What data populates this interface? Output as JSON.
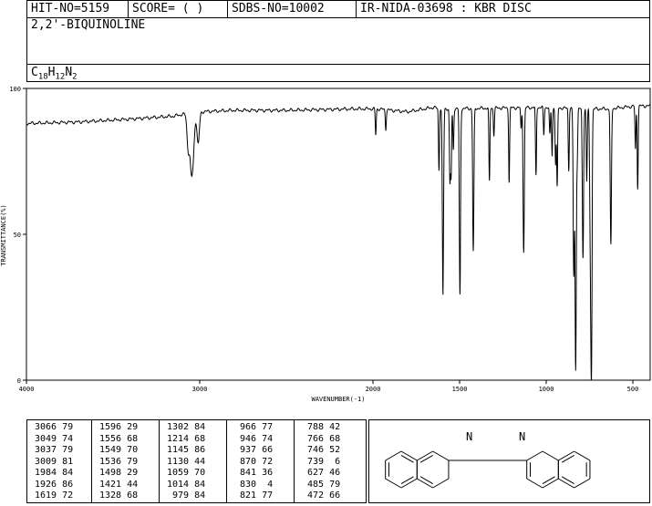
{
  "header": {
    "hit_no": "HIT-NO=5159",
    "score": "SCORE=  (   )",
    "sdbs_no": "SDBS-NO=10002",
    "ir_nida": "IR-NIDA-03698 : KBR DISC",
    "compound_name": "2,2'-BIQUINOLINE",
    "formula": {
      "c": "C",
      "c_n": "18",
      "h": "H",
      "h_n": "12",
      "n": "N",
      "n_n": "2"
    }
  },
  "chart_data": {
    "type": "line",
    "xlabel": "WAVENUMBER(-1)",
    "ylabel": "TRANSMITTANCE(%)",
    "xlim": [
      4000,
      400
    ],
    "ylim": [
      0,
      100
    ],
    "x_ticks": [
      4000,
      3000,
      2000,
      1500,
      1000,
      500
    ],
    "y_ticks": [
      0,
      50,
      100
    ],
    "baseline": [
      [
        4000,
        88
      ],
      [
        3700,
        88.5
      ],
      [
        3400,
        89.5
      ],
      [
        3150,
        90.5
      ],
      [
        3110,
        91
      ],
      [
        3000,
        92
      ],
      [
        2800,
        92.5
      ],
      [
        2500,
        92.5
      ],
      [
        2100,
        93
      ],
      [
        1980,
        93
      ],
      [
        1800,
        92
      ],
      [
        1650,
        93.5
      ],
      [
        1620,
        93
      ],
      [
        1000,
        93.5
      ],
      [
        800,
        93
      ],
      [
        650,
        93
      ],
      [
        470,
        94
      ],
      [
        400,
        94
      ]
    ],
    "peaks": [
      {
        "x": 3066,
        "y": 79
      },
      {
        "x": 3049,
        "y": 74
      },
      {
        "x": 3037,
        "y": 79
      },
      {
        "x": 3009,
        "y": 81
      },
      {
        "x": 1984,
        "y": 84
      },
      {
        "x": 1926,
        "y": 86
      },
      {
        "x": 1619,
        "y": 72
      },
      {
        "x": 1596,
        "y": 29
      },
      {
        "x": 1556,
        "y": 68
      },
      {
        "x": 1549,
        "y": 70
      },
      {
        "x": 1536,
        "y": 79
      },
      {
        "x": 1498,
        "y": 29
      },
      {
        "x": 1421,
        "y": 44
      },
      {
        "x": 1328,
        "y": 68
      },
      {
        "x": 1302,
        "y": 84
      },
      {
        "x": 1214,
        "y": 68
      },
      {
        "x": 1145,
        "y": 86
      },
      {
        "x": 1130,
        "y": 44
      },
      {
        "x": 1059,
        "y": 70
      },
      {
        "x": 1014,
        "y": 84
      },
      {
        "x": 979,
        "y": 84
      },
      {
        "x": 966,
        "y": 77
      },
      {
        "x": 946,
        "y": 74
      },
      {
        "x": 937,
        "y": 66
      },
      {
        "x": 870,
        "y": 72
      },
      {
        "x": 841,
        "y": 36
      },
      {
        "x": 830,
        "y": 4
      },
      {
        "x": 821,
        "y": 77
      },
      {
        "x": 788,
        "y": 42
      },
      {
        "x": 766,
        "y": 68
      },
      {
        "x": 746,
        "y": 52
      },
      {
        "x": 739,
        "y": 6
      },
      {
        "x": 627,
        "y": 46
      },
      {
        "x": 485,
        "y": 79
      },
      {
        "x": 472,
        "y": 66
      }
    ]
  },
  "peak_table": [
    [
      "3066 79",
      "3049 74",
      "3037 79",
      "3009 81",
      "1984 84",
      "1926 86",
      "1619 72"
    ],
    [
      "1596 29",
      "1556 68",
      "1549 70",
      "1536 79",
      "1498 29",
      "1421 44",
      "1328 68"
    ],
    [
      "1302 84",
      "1214 68",
      "1145 86",
      "1130 44",
      "1059 70",
      "1014 84",
      " 979 84"
    ],
    [
      " 966 77",
      " 946 74",
      " 937 66",
      " 870 72",
      " 841 36",
      " 830  4",
      " 821 77"
    ],
    [
      " 788 42",
      " 766 68",
      " 746 52",
      " 739  6",
      " 627 46",
      " 485 79",
      " 472 66"
    ]
  ],
  "structure": {
    "atom_label_1": "N",
    "atom_label_2": "N"
  }
}
